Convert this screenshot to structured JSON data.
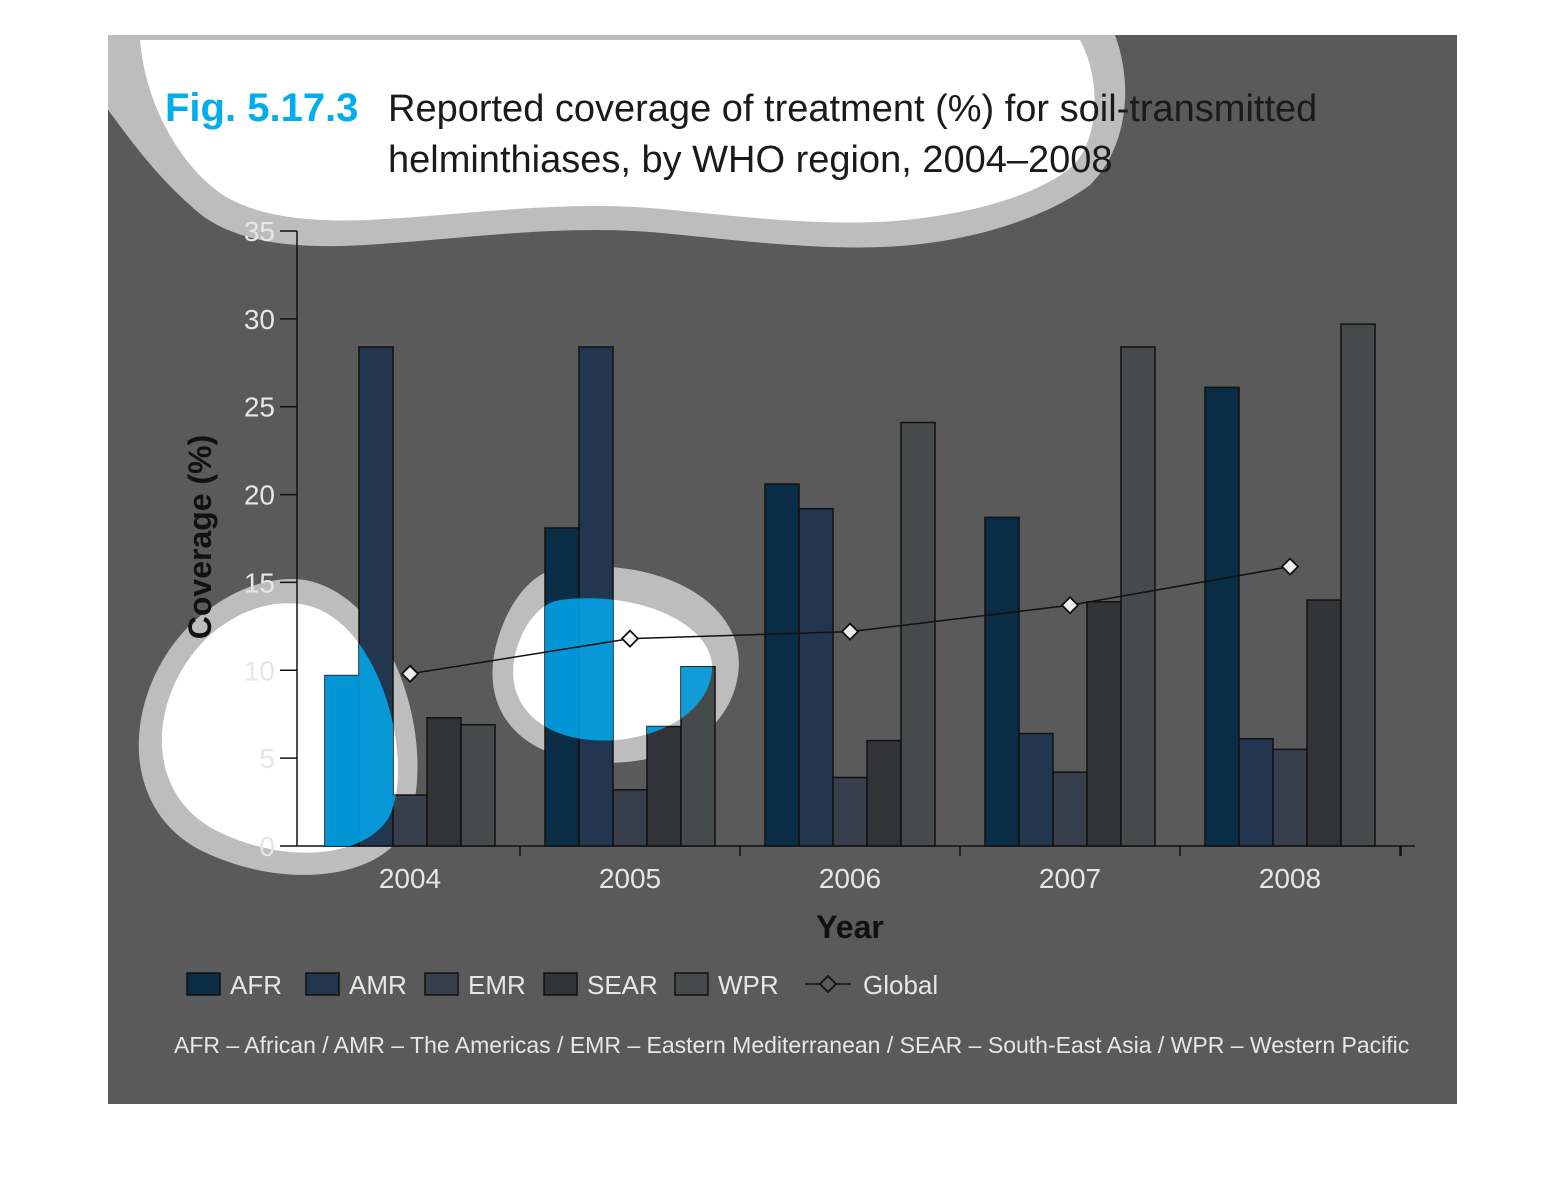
{
  "figure": {
    "label": "Fig. 5.17.3",
    "title_line1": "Reported coverage of treatment (%) for soil-transmitted",
    "title_line2": "helminthiases, by WHO region, 2004–2008",
    "footnote": "AFR – African / AMR – The Americas / EMR – Eastern Mediterranean / SEAR – South-East Asia / WPR – Western Pacific"
  },
  "colors": {
    "panel_background": "#5a5a5a",
    "accent_label": "#00aeef",
    "AFR": "#0b2c45",
    "AMR": "#22364f",
    "EMR": "#363f4b",
    "SEAR": "#323337",
    "WPR": "#474a4b",
    "global_line": "#111111",
    "annotation_halo": "#bdbdbd",
    "annotation_highlight": "#00b4ff"
  },
  "chart_data": {
    "type": "bar",
    "xlabel": "Year",
    "ylabel": "Coverage (%)",
    "ylim": [
      0,
      35
    ],
    "yticks": [
      "0",
      "5",
      "10",
      "15",
      "20",
      "25",
      "30",
      "35"
    ],
    "categories": [
      "2004",
      "2005",
      "2006",
      "2007",
      "2008"
    ],
    "series": [
      {
        "name": "AFR",
        "values": [
          9.7,
          18.1,
          20.6,
          18.7,
          26.1
        ]
      },
      {
        "name": "AMR",
        "values": [
          28.4,
          28.4,
          19.2,
          6.4,
          6.1
        ]
      },
      {
        "name": "EMR",
        "values": [
          2.9,
          3.2,
          3.9,
          4.2,
          5.5
        ]
      },
      {
        "name": "SEAR",
        "values": [
          7.3,
          6.8,
          6.0,
          13.9,
          14.0
        ]
      },
      {
        "name": "WPR",
        "values": [
          6.9,
          10.2,
          24.1,
          28.4,
          29.7
        ]
      }
    ],
    "line_series": {
      "name": "Global",
      "marker": "diamond",
      "values": [
        9.8,
        11.8,
        12.2,
        13.7,
        15.9
      ]
    },
    "legend_placement": "bottom",
    "grid": false
  }
}
